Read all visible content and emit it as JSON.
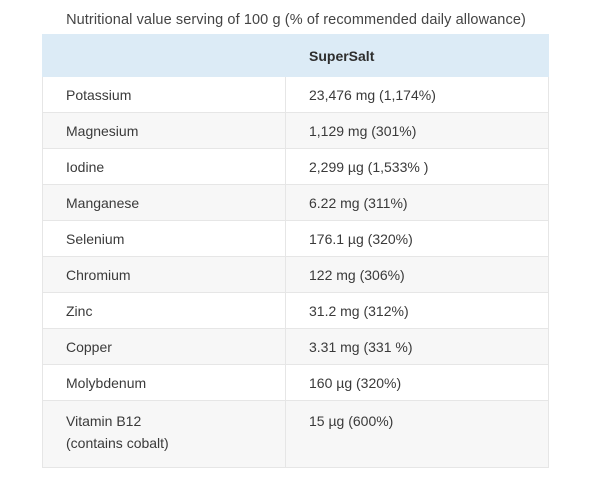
{
  "caption": "Nutritional value serving of 100 g (% of recommended daily allowance)",
  "table": {
    "header": [
      "",
      "SuperSalt"
    ],
    "rows": [
      {
        "name": [
          "Potassium"
        ],
        "value": "23,476 mg (1,174%)"
      },
      {
        "name": [
          "Magnesium"
        ],
        "value": "1,129 mg (301%)"
      },
      {
        "name": [
          "Iodine"
        ],
        "value": "2,299 µg (1,533% )"
      },
      {
        "name": [
          "Manganese"
        ],
        "value": "6.22 mg (311%)"
      },
      {
        "name": [
          "Selenium"
        ],
        "value": "176.1 µg (320%)"
      },
      {
        "name": [
          "Chromium"
        ],
        "value": "122 mg (306%)"
      },
      {
        "name": [
          "Zinc"
        ],
        "value": "31.2 mg (312%)"
      },
      {
        "name": [
          "Copper"
        ],
        "value": "3.31 mg (331 %)"
      },
      {
        "name": [
          "Molybdenum"
        ],
        "value": "160 µg (320%)"
      },
      {
        "name": [
          "Vitamin B12",
          "(contains cobalt)"
        ],
        "value": "15 µg (600%)"
      }
    ]
  }
}
